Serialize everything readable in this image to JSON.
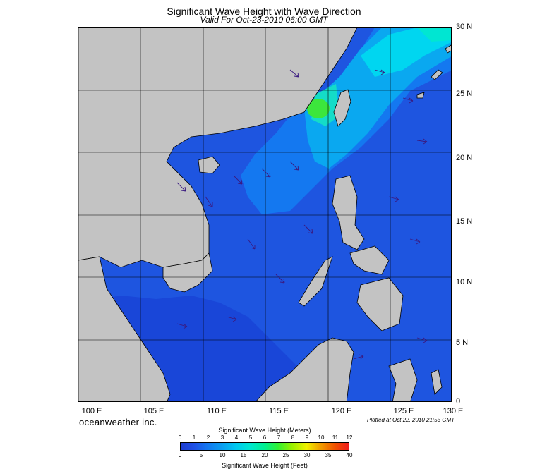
{
  "title": "Significant Wave Height with Wave Direction",
  "subtitle": "Valid For Oct-23-2010 06:00 GMT",
  "lat_labels": [
    "30 N",
    "25 N",
    "20 N",
    "15 N",
    "10 N",
    "5 N",
    "0"
  ],
  "lon_labels": [
    "100 E",
    "105 E",
    "110 E",
    "115 E",
    "120 E",
    "125 E",
    "130 E"
  ],
  "brand": "oceanweather inc.",
  "plotted": "Plotted at Oct 22, 2010 21:53 GMT",
  "colorbar": {
    "title_meters": "Significant Wave Height (Meters)",
    "title_feet": "Significant Wave Height (Feet)",
    "meter_ticks": [
      "0",
      "1",
      "2",
      "3",
      "4",
      "5",
      "6",
      "7",
      "8",
      "9",
      "10",
      "11",
      "12"
    ],
    "feet_ticks": [
      "0",
      "5",
      "10",
      "15",
      "20",
      "25",
      "30",
      "35",
      "40"
    ]
  },
  "colors": {
    "land": "#c3c3c3",
    "sea_deep": "#1e3cd0",
    "sea_mid": "#1478f0",
    "sea_high": "#00c8f0",
    "peak": "#32f032"
  },
  "map_extent": {
    "lon_min": 100,
    "lon_max": 130,
    "lat_min": 0,
    "lat_max": 30
  }
}
